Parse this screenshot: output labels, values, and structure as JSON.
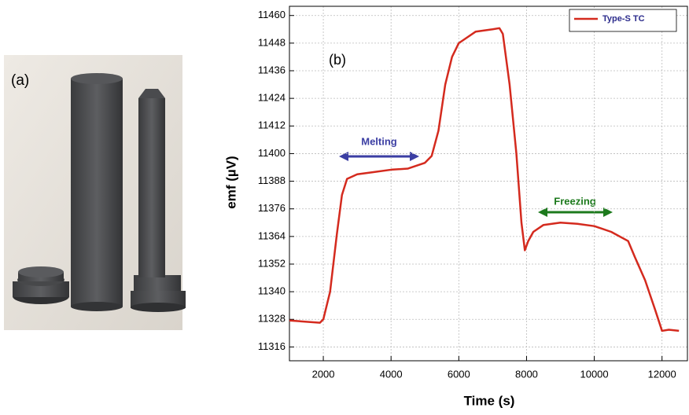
{
  "photo": {
    "label": "(a)"
  },
  "chart_data": {
    "type": "line",
    "x_label": "Time (s)",
    "y_label": "emf (µV)",
    "annotations": [
      "(b)",
      "Melting",
      "Freezing"
    ],
    "x": [
      1000,
      1900,
      2000,
      2200,
      2400,
      2550,
      2700,
      3000,
      3500,
      4000,
      4500,
      5000,
      5200,
      5400,
      5600,
      5800,
      6000,
      6200,
      6500,
      7000,
      7200,
      7300,
      7500,
      7700,
      7850,
      7950,
      8050,
      8200,
      8500,
      9000,
      9500,
      10000,
      10500,
      11000,
      11200,
      11500,
      11800,
      12000,
      12200,
      12500
    ],
    "series": [
      {
        "name": "Type-S TC",
        "color": "#d42a1e",
        "values": [
          11327.5,
          11326.5,
          11328,
          11340,
          11365,
          11382,
          11389,
          11391,
          11392,
          11393,
          11393.5,
          11396,
          11399,
          11410,
          11430,
          11442,
          11448,
          11450,
          11453,
          11454,
          11454.5,
          11452,
          11430,
          11400,
          11370,
          11358,
          11362,
          11366,
          11369,
          11370,
          11369.5,
          11368.5,
          11366,
          11362,
          11355,
          11345,
          11332,
          11323,
          11323.5,
          11323
        ]
      }
    ],
    "xlim": [
      1000,
      12750
    ],
    "ylim": [
      11310,
      11464
    ],
    "xticks": [
      2000,
      4000,
      6000,
      8000,
      10000,
      12000
    ],
    "yticks": [
      11316,
      11328,
      11340,
      11352,
      11364,
      11376,
      11388,
      11400,
      11412,
      11424,
      11436,
      11448,
      11460
    ],
    "grid": true,
    "legend": "upper right"
  }
}
